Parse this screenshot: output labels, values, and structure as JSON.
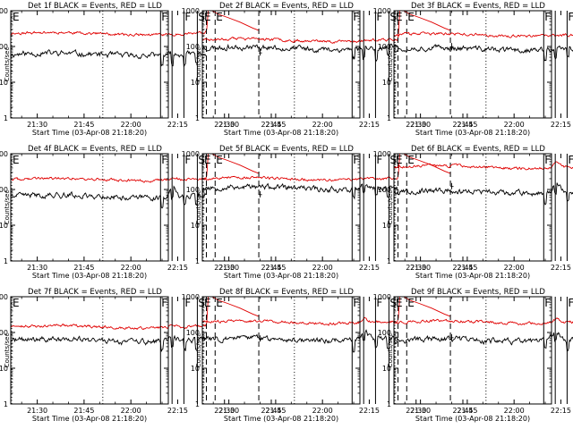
{
  "chart_data": {
    "type": "line",
    "yscale": "log",
    "ylabel": "Counts/sec",
    "xlabel": "Start Time (03-Apr-08 21:18:20)",
    "xlim_minutes": [
      21.5,
      72.0
    ],
    "ylim": [
      1,
      1000
    ],
    "x_ticks": [
      {
        "label": "21:30",
        "minute": 30
      },
      {
        "label": "21:45",
        "minute": 45
      },
      {
        "label": "22:00",
        "minute": 60
      },
      {
        "label": "22:15",
        "minute": 75
      },
      {
        "label": "22:30",
        "minute": 90
      },
      {
        "label": "22:45",
        "minute": 105
      }
    ],
    "y_ticks": [
      {
        "label": "1",
        "value": 1
      },
      {
        "label": "10",
        "value": 10
      },
      {
        "label": "100",
        "value": 100
      },
      {
        "label": "1000",
        "value": 1000
      }
    ],
    "series_colors": {
      "events": "#000000",
      "lld": "#e00000"
    },
    "markers": [
      {
        "label": "E",
        "minute": 21.8,
        "style": "dotted"
      },
      {
        "label": "",
        "minute": 51.0,
        "style": "dotted"
      },
      {
        "label": "F",
        "minute": 69.5,
        "style": "solid"
      },
      {
        "label": "",
        "minute": 73.2,
        "style": "solid"
      },
      {
        "label": "F",
        "minute": 77.0,
        "style": "solid"
      },
      {
        "label": "S",
        "minute": 81.3,
        "style": "solid"
      },
      {
        "label": "",
        "minute": 84.2,
        "style": "dashed"
      },
      {
        "label": "E",
        "minute": 87.0,
        "style": "dashed"
      },
      {
        "label": "",
        "minute": 101.0,
        "style": "dashed"
      }
    ],
    "panels": [
      {
        "title": "Det 1f BLACK = Events, RED = LLD",
        "events": 60,
        "lld": 230,
        "bump": 1.0,
        "seed": 11
      },
      {
        "title": "Det 2f BLACK = Events, RED = LLD",
        "events": 90,
        "lld": 150,
        "bump": 1.1,
        "seed": 23
      },
      {
        "title": "Det 3f BLACK = Events, RED = LLD",
        "events": 85,
        "lld": 210,
        "bump": 1.0,
        "seed": 37
      },
      {
        "title": "Det 4f BLACK = Events, RED = LLD",
        "events": 65,
        "lld": 190,
        "bump": 1.6,
        "seed": 41
      },
      {
        "title": "Det 5f BLACK = Events, RED = LLD",
        "events": 110,
        "lld": 200,
        "bump": 1.2,
        "seed": 53
      },
      {
        "title": "Det 6f BLACK = Events, RED = LLD",
        "events": 85,
        "lld": 430,
        "bump": 1.9,
        "seed": 67
      },
      {
        "title": "Det 7f BLACK = Events, RED = LLD",
        "events": 60,
        "lld": 145,
        "bump": 1.4,
        "seed": 71
      },
      {
        "title": "Det 8f BLACK = Events, RED = LLD",
        "events": 65,
        "lld": 195,
        "bump": 1.8,
        "seed": 83
      },
      {
        "title": "Det 9f BLACK = Events, RED = LLD",
        "events": 60,
        "lld": 195,
        "bump": 1.7,
        "seed": 97
      }
    ]
  }
}
